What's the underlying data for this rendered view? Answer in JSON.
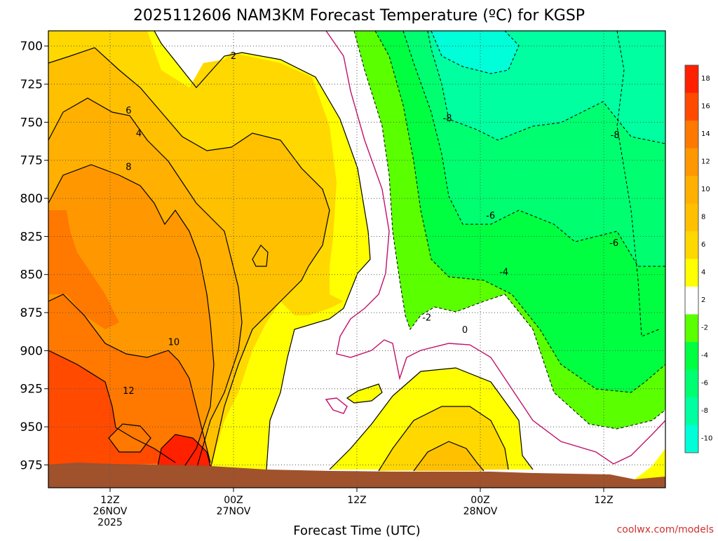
{
  "chart_data": {
    "type": "heatmap",
    "title": "2025112606 NAM3KM Forecast Temperature (ºC) for KGSP",
    "xlabel": "Forecast Time (UTC)",
    "ylabel": "",
    "y_axis": {
      "scale": "pressure (inverted)",
      "ylim": [
        990,
        690
      ],
      "ticks": [
        "700",
        "725",
        "750",
        "775",
        "800",
        "825",
        "850",
        "875",
        "900",
        "925",
        "950",
        "975"
      ]
    },
    "x_axis": {
      "ticks": [
        {
          "hour": 12,
          "lines": [
            "12Z",
            "26NOV",
            "2025"
          ]
        },
        {
          "hour": 24,
          "lines": [
            "00Z",
            "27NOV"
          ]
        },
        {
          "hour": 36,
          "lines": [
            "12Z"
          ]
        },
        {
          "hour": 48,
          "lines": [
            "00Z",
            "28NOV"
          ]
        },
        {
          "hour": 60,
          "lines": [
            "12Z"
          ]
        }
      ],
      "xlim": [
        6,
        66
      ]
    },
    "grid": true,
    "colorbar": {
      "placement": "right",
      "levels": [
        "18",
        "16",
        "14",
        "12",
        "10",
        "8",
        "6",
        "4",
        "2",
        "-2",
        "-4",
        "-6",
        "-8",
        "-10"
      ],
      "colors": [
        "#ff2000",
        "#ff4a00",
        "#ff7800",
        "#ff9800",
        "#ffb000",
        "#ffc000",
        "#ffd800",
        "#ffff00",
        "#ffffff",
        "#5aff00",
        "#00ff40",
        "#00ff70",
        "#00ffa0",
        "#00ffd8"
      ]
    },
    "contour_labels": [
      {
        "text": "2",
        "x": 24.0,
        "p": 706
      },
      {
        "text": "4",
        "x": 14.8,
        "p": 757
      },
      {
        "text": "6",
        "x": 13.8,
        "p": 742
      },
      {
        "text": "8",
        "x": 13.8,
        "p": 779
      },
      {
        "text": "10",
        "x": 18.2,
        "p": 894
      },
      {
        "text": "12",
        "x": 13.8,
        "p": 926
      },
      {
        "text": "0",
        "x": 46.5,
        "p": 886
      },
      {
        "text": "-2",
        "x": 42.8,
        "p": 878
      },
      {
        "text": "-4",
        "x": 50.3,
        "p": 848
      },
      {
        "text": "-6",
        "x": 49.0,
        "p": 811
      },
      {
        "text": "-6",
        "x": 61.0,
        "p": 829
      },
      {
        "text": "-8",
        "x": 44.8,
        "p": 747
      },
      {
        "text": "-8",
        "x": 61.1,
        "p": 758
      }
    ]
  },
  "credit": "coolwx.com/models"
}
